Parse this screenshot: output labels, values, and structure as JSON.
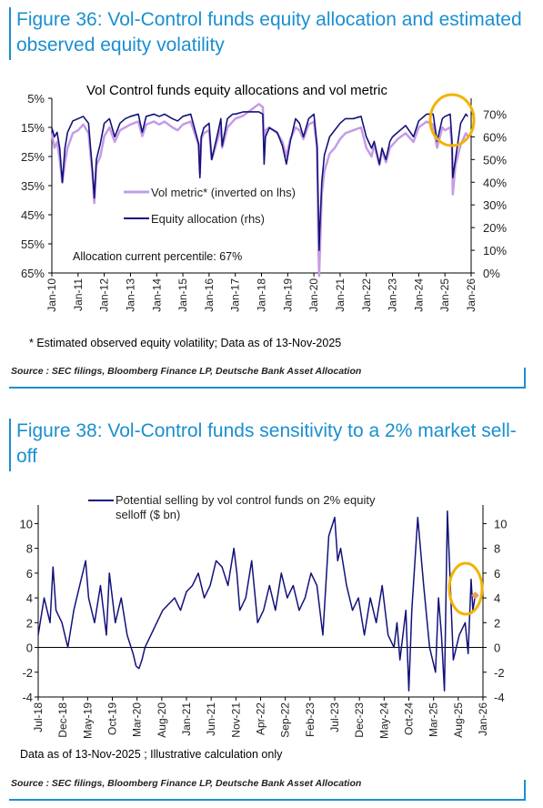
{
  "figure36": {
    "title": "Figure 36: Vol-Control funds equity allocation and estimated observed equity volatility",
    "footnote": "* Estimated observed equity volatility;    Data as of 13-Nov-2025",
    "source": "Source : SEC filings, Bloomberg Finance LP, Deutsche Bank Asset Allocation"
  },
  "figure38": {
    "title": "Figure 38: Vol-Control funds sensitivity to a 2% market sell-off",
    "footnote": "Data as of 13-Nov-2025  ; Illustrative calculation only",
    "source": "Source : SEC filings, Bloomberg Finance LP, Deutsche Bank Asset Allocation"
  },
  "colors": {
    "accent": "#1a8fd0",
    "navy": "#12127a",
    "lilac": "#c59be6",
    "highlight": "#f2b300",
    "marker": "#f0985a"
  },
  "chart_data": [
    {
      "type": "line",
      "title": "Vol Control funds equity allocations and vol metric",
      "x_tick_labels": [
        "Jan-10",
        "Jan-11",
        "Jan-12",
        "Jan-13",
        "Jan-14",
        "Jan-15",
        "Jan-16",
        "Jan-17",
        "Jan-18",
        "Jan-19",
        "Jan-20",
        "Jan-21",
        "Jan-22",
        "Jan-23",
        "Jan-24",
        "Jan-25",
        "Jan-26"
      ],
      "y_left_ticks": [
        "5%",
        "15%",
        "25%",
        "35%",
        "45%",
        "55%",
        "65%"
      ],
      "y_left_lim": [
        65,
        5
      ],
      "y_left_inverted": true,
      "y_right_ticks": [
        "0%",
        "10%",
        "20%",
        "30%",
        "40%",
        "50%",
        "60%",
        "70%"
      ],
      "y_right_lim": [
        0,
        77
      ],
      "annotation": "Allocation current percentile: 67%",
      "legend_position": "center-left",
      "series": [
        {
          "name": "Vol metric* (inverted on lhs)",
          "axis": "left",
          "x": [
            2010.0,
            2010.1,
            2010.2,
            2010.3,
            2010.4,
            2010.5,
            2010.6,
            2010.8,
            2011.0,
            2011.2,
            2011.4,
            2011.55,
            2011.62,
            2011.7,
            2011.85,
            2012.0,
            2012.2,
            2012.4,
            2012.6,
            2012.8,
            2013.0,
            2013.3,
            2013.45,
            2013.6,
            2013.9,
            2014.1,
            2014.3,
            2014.6,
            2014.8,
            2015.0,
            2015.3,
            2015.6,
            2015.65,
            2015.7,
            2015.8,
            2016.0,
            2016.1,
            2016.3,
            2016.45,
            2016.5,
            2016.7,
            2016.9,
            2017.0,
            2017.3,
            2017.6,
            2017.9,
            2018.05,
            2018.1,
            2018.15,
            2018.3,
            2018.6,
            2018.8,
            2018.95,
            2019.1,
            2019.3,
            2019.45,
            2019.6,
            2019.8,
            2020.0,
            2020.12,
            2020.17,
            2020.2,
            2020.22,
            2020.3,
            2020.4,
            2020.6,
            2020.8,
            2021.0,
            2021.2,
            2021.5,
            2021.8,
            2022.0,
            2022.2,
            2022.3,
            2022.5,
            2022.6,
            2022.75,
            2022.9,
            2023.0,
            2023.2,
            2023.5,
            2023.8,
            2024.0,
            2024.3,
            2024.55,
            2024.6,
            2024.7,
            2024.9,
            2025.0,
            2025.2,
            2025.27,
            2025.3,
            2025.4,
            2025.6,
            2025.8,
            2025.87
          ],
          "values": [
            17,
            22,
            20,
            26,
            34,
            27,
            22,
            17,
            16,
            14,
            17,
            31,
            41,
            28,
            25,
            18,
            15,
            20,
            16,
            15,
            14,
            13,
            18,
            14,
            13,
            14,
            13,
            15,
            16,
            14,
            13,
            21,
            31,
            19,
            17,
            16,
            26,
            20,
            15,
            22,
            15,
            13,
            12,
            11,
            9,
            7,
            8,
            20,
            16,
            15,
            17,
            20,
            25,
            19,
            15,
            16,
            19,
            14,
            13,
            22,
            55,
            66,
            60,
            38,
            30,
            24,
            22,
            19,
            17,
            16,
            15,
            22,
            25,
            21,
            28,
            23,
            27,
            22,
            21,
            19,
            17,
            20,
            15,
            13,
            14,
            17,
            22,
            15,
            16,
            15,
            22,
            38,
            28,
            21,
            17,
            18
          ]
        },
        {
          "name": "Equity allocation (rhs)",
          "axis": "right",
          "x": [
            2010.0,
            2010.1,
            2010.2,
            2010.3,
            2010.4,
            2010.5,
            2010.6,
            2010.8,
            2011.0,
            2011.2,
            2011.4,
            2011.55,
            2011.62,
            2011.7,
            2011.85,
            2012.0,
            2012.2,
            2012.4,
            2012.6,
            2012.8,
            2013.0,
            2013.3,
            2013.45,
            2013.6,
            2013.9,
            2014.1,
            2014.3,
            2014.6,
            2014.8,
            2015.0,
            2015.3,
            2015.6,
            2015.65,
            2015.7,
            2015.8,
            2016.0,
            2016.1,
            2016.3,
            2016.45,
            2016.5,
            2016.7,
            2016.9,
            2017.0,
            2017.3,
            2017.6,
            2017.9,
            2018.05,
            2018.1,
            2018.15,
            2018.3,
            2018.6,
            2018.8,
            2018.95,
            2019.1,
            2019.3,
            2019.45,
            2019.6,
            2019.8,
            2020.0,
            2020.12,
            2020.17,
            2020.2,
            2020.22,
            2020.3,
            2020.4,
            2020.6,
            2020.8,
            2021.0,
            2021.2,
            2021.5,
            2021.8,
            2022.0,
            2022.2,
            2022.3,
            2022.5,
            2022.6,
            2022.75,
            2022.9,
            2023.0,
            2023.2,
            2023.5,
            2023.8,
            2024.0,
            2024.3,
            2024.55,
            2024.6,
            2024.7,
            2024.9,
            2025.0,
            2025.2,
            2025.27,
            2025.3,
            2025.4,
            2025.6,
            2025.8,
            2025.87
          ],
          "values": [
            64,
            60,
            62,
            55,
            40,
            55,
            62,
            67,
            68,
            69,
            66,
            45,
            33,
            50,
            57,
            66,
            68,
            60,
            66,
            68,
            69,
            70,
            62,
            69,
            70,
            69,
            70,
            68,
            67,
            69,
            70,
            57,
            42,
            60,
            64,
            66,
            50,
            60,
            68,
            56,
            68,
            70,
            70,
            71,
            71,
            71,
            70,
            48,
            60,
            64,
            62,
            56,
            48,
            58,
            68,
            66,
            60,
            68,
            70,
            56,
            28,
            10,
            18,
            40,
            52,
            60,
            63,
            66,
            68,
            68,
            69,
            60,
            55,
            58,
            48,
            55,
            50,
            58,
            60,
            62,
            65,
            60,
            67,
            70,
            70,
            66,
            58,
            68,
            69,
            70,
            58,
            42,
            50,
            66,
            70,
            69
          ]
        }
      ]
    },
    {
      "type": "line",
      "title": "",
      "x_tick_labels": [
        "Jul-18",
        "Dec-18",
        "May-19",
        "Oct-19",
        "Mar-20",
        "Aug-20",
        "Jan-21",
        "Jun-21",
        "Nov-21",
        "Apr-22",
        "Sep-22",
        "Feb-23",
        "Jul-23",
        "Dec-23",
        "May-24",
        "Oct-24",
        "Mar-25",
        "Aug-25",
        "Jan-26"
      ],
      "y_ticks": [
        "-4",
        "-2",
        "0",
        "2",
        "4",
        "6",
        "8",
        "10"
      ],
      "ylim": [
        -4,
        11.5
      ],
      "legend_position": "top-left",
      "series": [
        {
          "name": "Potential selling by vol control funds on 2% equity selloff ($ bn)",
          "x": [
            2018.5,
            2018.6,
            2018.7,
            2018.75,
            2018.8,
            2018.9,
            2019.0,
            2019.1,
            2019.2,
            2019.3,
            2019.35,
            2019.45,
            2019.55,
            2019.65,
            2019.7,
            2019.8,
            2019.9,
            2020.0,
            2020.1,
            2020.15,
            2020.2,
            2020.25,
            2020.3,
            2020.4,
            2020.5,
            2020.6,
            2020.7,
            2020.8,
            2020.9,
            2021.0,
            2021.1,
            2021.2,
            2021.3,
            2021.4,
            2021.5,
            2021.6,
            2021.7,
            2021.8,
            2021.85,
            2021.9,
            2022.0,
            2022.1,
            2022.2,
            2022.3,
            2022.4,
            2022.5,
            2022.6,
            2022.7,
            2022.8,
            2022.9,
            2023.0,
            2023.1,
            2023.2,
            2023.3,
            2023.4,
            2023.5,
            2023.55,
            2023.6,
            2023.7,
            2023.8,
            2023.9,
            2024.0,
            2024.1,
            2024.2,
            2024.3,
            2024.4,
            2024.5,
            2024.55,
            2024.6,
            2024.7,
            2024.75,
            2024.8,
            2024.9,
            2025.0,
            2025.1,
            2025.2,
            2025.25,
            2025.3,
            2025.35,
            2025.4,
            2025.5,
            2025.6,
            2025.7,
            2025.75,
            2025.8,
            2025.83,
            2025.87
          ],
          "values": [
            1,
            4,
            2,
            6.5,
            3,
            2,
            0,
            3,
            5,
            7,
            4,
            2,
            5,
            1,
            6,
            2,
            4,
            1,
            -0.5,
            -1.5,
            -1.7,
            -1,
            0,
            1,
            2,
            3,
            3.5,
            4,
            3,
            4.5,
            5,
            6,
            4,
            5,
            7,
            6.5,
            5,
            8,
            6,
            3,
            4,
            7,
            2,
            3,
            5,
            3,
            6,
            4,
            5,
            3,
            4,
            6,
            5,
            1,
            9,
            10.5,
            7,
            8,
            5,
            3,
            4,
            1,
            4,
            2,
            5,
            1,
            0,
            2,
            -1,
            3,
            -3.5,
            3,
            10.5,
            5,
            0,
            -2,
            4,
            1,
            -3.5,
            11,
            -1,
            1,
            2,
            -0.5,
            5.5,
            3,
            4.2
          ]
        }
      ],
      "annotation_point": {
        "x": 2025.87,
        "y": 4.2
      }
    }
  ]
}
